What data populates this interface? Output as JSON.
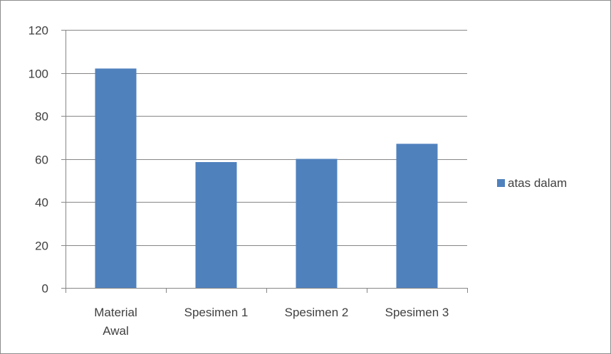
{
  "chart_data": {
    "type": "bar",
    "categories": [
      [
        "Material",
        "Awal"
      ],
      [
        "Spesimen 1"
      ],
      [
        "Spesimen 2"
      ],
      [
        "Spesimen 3"
      ]
    ],
    "series": [
      {
        "name": "atas dalam",
        "color": "#4f81bd",
        "values": [
          102,
          58.5,
          60,
          67
        ]
      }
    ],
    "ylim": [
      0,
      120
    ],
    "yticks": [
      0,
      20,
      40,
      60,
      80,
      100,
      120
    ],
    "grid": true,
    "legend": "right"
  }
}
